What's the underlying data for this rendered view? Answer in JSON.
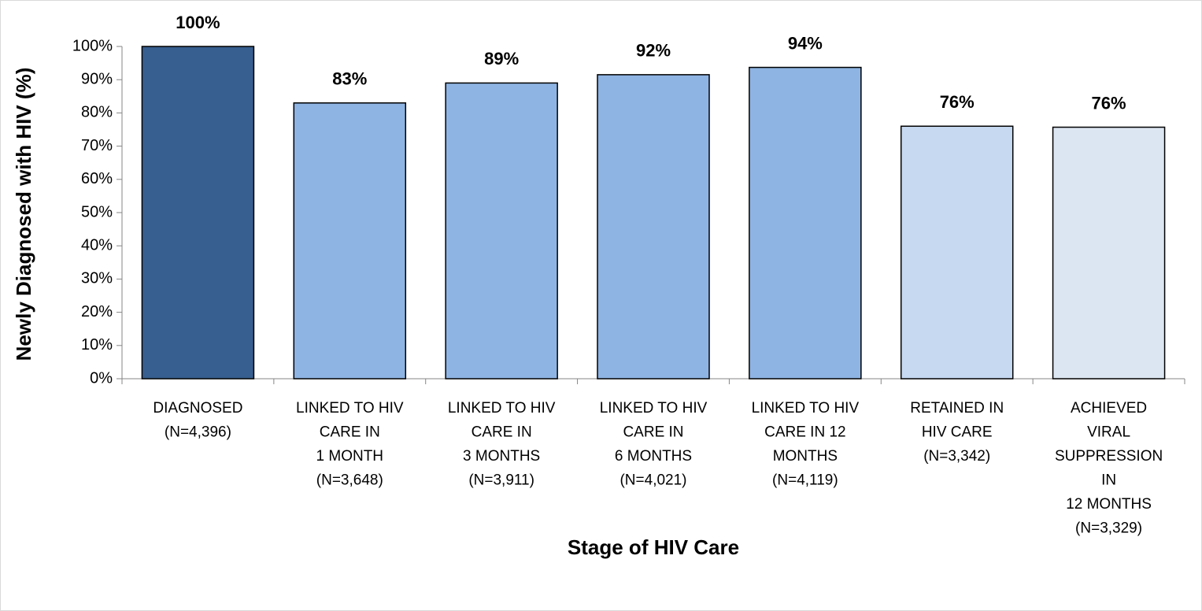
{
  "chart_data": {
    "type": "bar",
    "xlabel": "Stage of HIV Care",
    "ylabel": "Newly Diagnosed with HIV (%)",
    "categories": [
      [
        "DIAGNOSED",
        "(N=4,396)"
      ],
      [
        "LINKED TO HIV",
        "CARE IN",
        "1 MONTH",
        "(N=3,648)"
      ],
      [
        "LINKED TO HIV",
        "CARE IN",
        "3 MONTHS",
        "(N=3,911)"
      ],
      [
        "LINKED TO HIV",
        "CARE IN",
        "6 MONTHS",
        "(N=4,021)"
      ],
      [
        "LINKED TO HIV",
        "CARE IN 12",
        "MONTHS",
        "(N=4,119)"
      ],
      [
        "RETAINED IN",
        "HIV CARE",
        "(N=3,342)"
      ],
      [
        "ACHIEVED",
        "VIRAL",
        "SUPPRESSION",
        "IN",
        "12 MONTHS",
        "(N=3,329)"
      ]
    ],
    "values": [
      100,
      83,
      89,
      91.5,
      93.7,
      76,
      75.7
    ],
    "value_labels": [
      "100%",
      "83%",
      "89%",
      "92%",
      "94%",
      "76%",
      "76%"
    ],
    "colors": [
      "#375f8f",
      "#8eb4e3",
      "#8eb4e3",
      "#8eb4e3",
      "#8eb4e3",
      "#c6d9f1",
      "#dce6f2"
    ],
    "ylim": [
      0,
      100
    ],
    "yticks": [
      {
        "value": 0,
        "label": "0%"
      },
      {
        "value": 10,
        "label": "10%"
      },
      {
        "value": 20,
        "label": "20%"
      },
      {
        "value": 30,
        "label": "30%"
      },
      {
        "value": 40,
        "label": "40%"
      },
      {
        "value": 50,
        "label": "50%"
      },
      {
        "value": 60,
        "label": "60%"
      },
      {
        "value": 70,
        "label": "70%"
      },
      {
        "value": 80,
        "label": "80%"
      },
      {
        "value": 90,
        "label": "90%"
      },
      {
        "value": 100,
        "label": "100%"
      }
    ]
  }
}
